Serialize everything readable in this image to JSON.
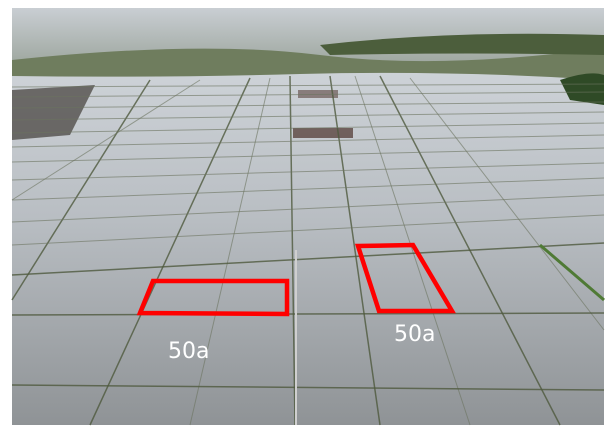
{
  "annotations": [
    {
      "label": "50a"
    },
    {
      "label": "50a"
    }
  ]
}
